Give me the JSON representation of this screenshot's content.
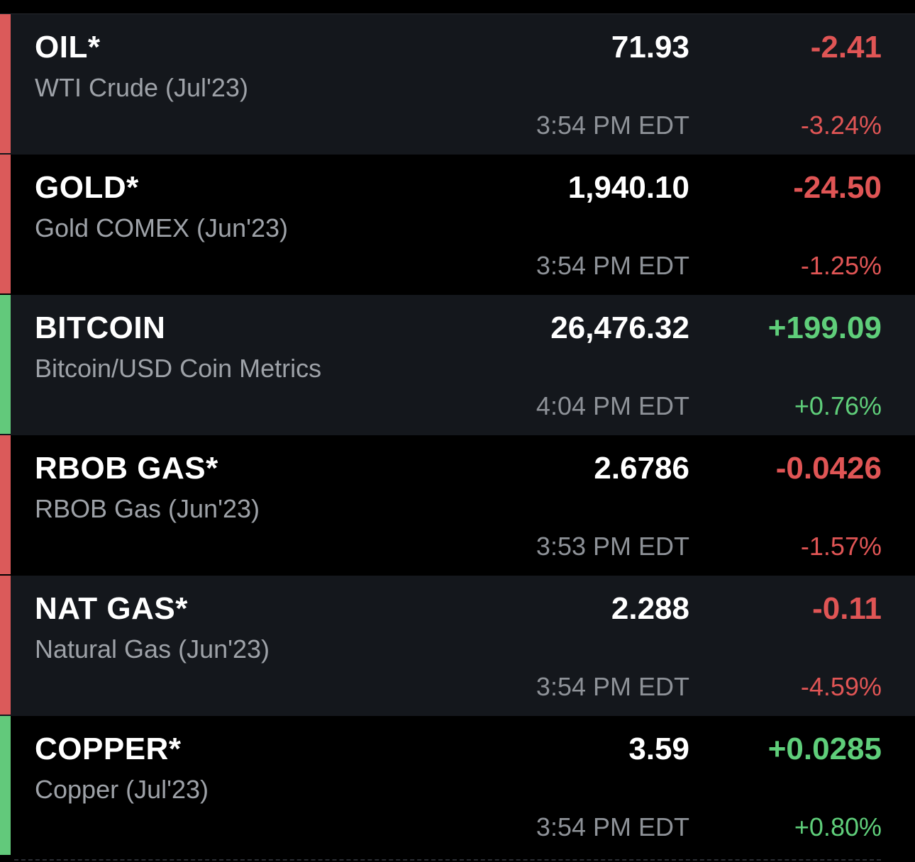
{
  "colors": {
    "down": "#e05555",
    "up": "#5fce7a",
    "bar_down": "#db5a5a",
    "bar_up": "#62c97b"
  },
  "quotes": [
    {
      "symbol": "OIL*",
      "name": "WTI Crude (Jul'23)",
      "price": "71.93",
      "time": "3:54 PM EDT",
      "change": "-2.41",
      "pct": "-3.24%",
      "direction": "down"
    },
    {
      "symbol": "GOLD*",
      "name": "Gold COMEX (Jun'23)",
      "price": "1,940.10",
      "time": "3:54 PM EDT",
      "change": "-24.50",
      "pct": "-1.25%",
      "direction": "down"
    },
    {
      "symbol": "BITCOIN",
      "name": "Bitcoin/USD Coin Metrics",
      "price": "26,476.32",
      "time": "4:04 PM EDT",
      "change": "+199.09",
      "pct": "+0.76%",
      "direction": "up"
    },
    {
      "symbol": "RBOB GAS*",
      "name": "RBOB Gas (Jun'23)",
      "price": "2.6786",
      "time": "3:53 PM EDT",
      "change": "-0.0426",
      "pct": "-1.57%",
      "direction": "down"
    },
    {
      "symbol": "NAT GAS*",
      "name": "Natural Gas (Jun'23)",
      "price": "2.288",
      "time": "3:54 PM EDT",
      "change": "-0.11",
      "pct": "-4.59%",
      "direction": "down"
    },
    {
      "symbol": "COPPER*",
      "name": "Copper (Jul'23)",
      "price": "3.59",
      "time": "3:54 PM EDT",
      "change": "+0.0285",
      "pct": "+0.80%",
      "direction": "up"
    }
  ]
}
